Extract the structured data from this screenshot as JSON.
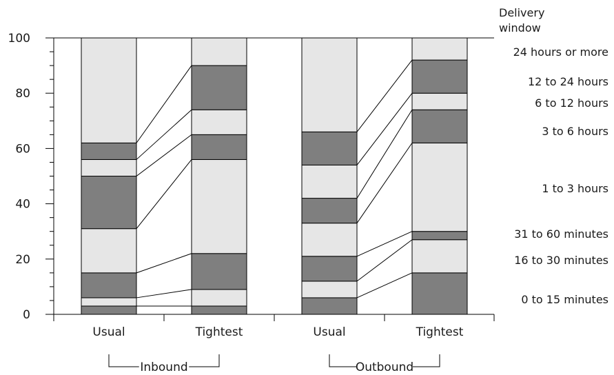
{
  "chart_data": {
    "type": "bar",
    "stacked": true,
    "legend_title_lines": [
      "Delivery",
      "window"
    ],
    "ylim": [
      0,
      100
    ],
    "yticks": [
      0,
      20,
      40,
      60,
      80,
      100
    ],
    "categories": [
      "Usual",
      "Tightest",
      "Usual",
      "Tightest"
    ],
    "groups": [
      {
        "name": "Inbound",
        "categories": [
          "Usual",
          "Tightest"
        ]
      },
      {
        "name": "Outbound",
        "categories": [
          "Usual",
          "Tightest"
        ]
      }
    ],
    "series": [
      {
        "name": "0 to 15 minutes",
        "values": [
          3,
          3,
          6,
          15
        ]
      },
      {
        "name": "16 to 30 minutes",
        "values": [
          3,
          6,
          6,
          12
        ]
      },
      {
        "name": "31 to 60 minutes",
        "values": [
          9,
          13,
          9,
          3
        ]
      },
      {
        "name": "1 to 3 hours",
        "values": [
          16,
          34,
          12,
          32
        ]
      },
      {
        "name": "3 to 6 hours",
        "values": [
          19,
          9,
          9,
          12
        ]
      },
      {
        "name": "6 to 12 hours",
        "values": [
          6,
          9,
          12,
          6
        ]
      },
      {
        "name": "12 to 24 hours",
        "values": [
          6,
          16,
          12,
          12
        ]
      },
      {
        "name": "24 hours or more",
        "values": [
          38,
          10,
          34,
          8
        ]
      }
    ],
    "colors": {
      "light": "#e6e6e6",
      "dark": "#7f7f7f",
      "stroke": "#000000"
    }
  }
}
